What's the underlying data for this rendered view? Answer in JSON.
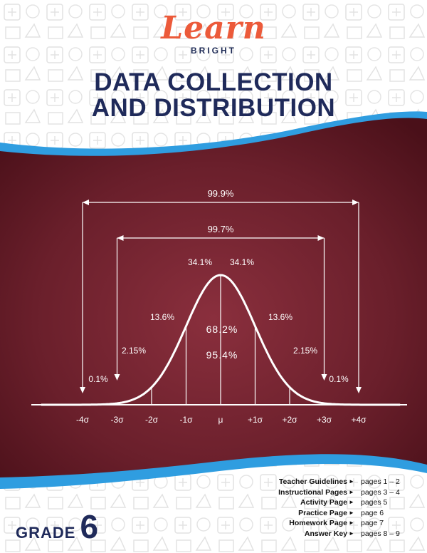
{
  "brand": {
    "logo_word": "Learn",
    "logo_sub": "BRIGHT"
  },
  "title": {
    "line1": "DATA COLLECTION",
    "line2": "AND DISTRIBUTION"
  },
  "colors": {
    "chalkboard": "#6a1f2b",
    "accent_blue": "#1f2a5a",
    "wave": "#2f9de0",
    "logo": "#ec5a3a"
  },
  "chart_data": {
    "type": "area",
    "title": "",
    "x_tick_labels": [
      "-4σ",
      "-3σ",
      "-2σ",
      "-1σ",
      "μ",
      "+1σ",
      "+2σ",
      "+3σ",
      "+4σ"
    ],
    "x": [
      -4,
      -3,
      -2,
      -1,
      0,
      1,
      2,
      3,
      4
    ],
    "region_labels": [
      {
        "text": "0.1%",
        "from": -4,
        "to": -3
      },
      {
        "text": "2.15%",
        "from": -3,
        "to": -2
      },
      {
        "text": "13.6%",
        "from": -2,
        "to": -1
      },
      {
        "text": "34.1%",
        "from": -1,
        "to": 0
      },
      {
        "text": "34.1%",
        "from": 0,
        "to": 1
      },
      {
        "text": "13.6%",
        "from": 1,
        "to": 2
      },
      {
        "text": "2.15%",
        "from": 2,
        "to": 3
      },
      {
        "text": "0.1%",
        "from": 3,
        "to": 4
      }
    ],
    "center_labels": [
      "68.2%",
      "95.4%"
    ],
    "spans": [
      {
        "text": "99.9%",
        "from": -4,
        "to": 4
      },
      {
        "text": "99.7%",
        "from": -3,
        "to": 3
      }
    ]
  },
  "grade": {
    "label": "GRADE",
    "number": "6"
  },
  "toc": [
    {
      "label": "Teacher Guidelines",
      "pages": "pages 1 – 2"
    },
    {
      "label": "Instructional Pages",
      "pages": "pages 3 – 4"
    },
    {
      "label": "Activity Page",
      "pages": "pages 5"
    },
    {
      "label": "Practice Page",
      "pages": "page  6"
    },
    {
      "label": "Homework Page",
      "pages": "page  7"
    },
    {
      "label": "Answer Key",
      "pages": "pages 8 – 9"
    }
  ]
}
